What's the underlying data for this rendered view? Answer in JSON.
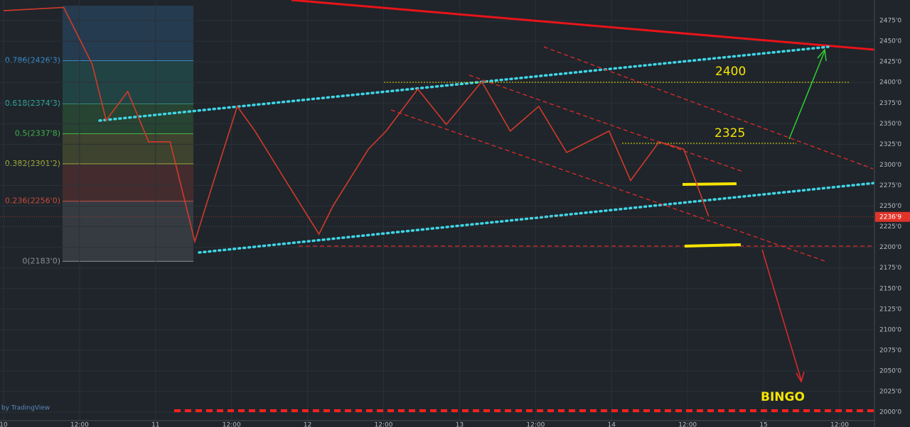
{
  "chart_data": {
    "type": "line",
    "x": [
      0,
      9.5,
      14,
      16.2,
      19.6,
      22.9,
      26.3,
      30.2,
      33,
      36.9,
      39.7,
      44.2,
      49.8,
      52,
      57.6,
      60.4,
      65.4,
      69.9,
      75.5,
      80,
      84.5,
      88.9,
      95.6,
      99,
      103.5,
      107.4,
      111.3
    ],
    "series": [
      {
        "color": "#d23a2a",
        "values": [
          2487,
          2491,
          2422,
          2354,
          2389,
          2328,
          2328,
          2207,
          2276,
          2371,
          2341,
          2285,
          2216,
          2250,
          2319,
          2341,
          2392,
          2349,
          2401,
          2341,
          2371,
          2315,
          2341,
          2281,
          2328,
          2319,
          2238
        ]
      }
    ],
    "xlim": [
      -0.5,
      137
    ],
    "xticks": [
      {
        "value": 0,
        "label": "10"
      },
      {
        "value": 12,
        "label": "12:00"
      },
      {
        "value": 24,
        "label": "11"
      },
      {
        "value": 36,
        "label": "12:00"
      },
      {
        "value": 48,
        "label": "12"
      },
      {
        "value": 60,
        "label": "12:00"
      },
      {
        "value": 72,
        "label": "13"
      },
      {
        "value": 84,
        "label": "12:00"
      },
      {
        "value": 96,
        "label": "14"
      },
      {
        "value": 108,
        "label": "12:00"
      },
      {
        "value": 120,
        "label": "15"
      },
      {
        "value": 132,
        "label": "12:00"
      }
    ],
    "ylim": [
      1982,
      2500
    ],
    "yticks": [
      {
        "value": 2000,
        "label": "2000'0"
      },
      {
        "value": 2025,
        "label": "2025'0"
      },
      {
        "value": 2050,
        "label": "2050'0"
      },
      {
        "value": 2075,
        "label": "2075'0"
      },
      {
        "value": 2100,
        "label": "2100'0"
      },
      {
        "value": 2125,
        "label": "2125'0"
      },
      {
        "value": 2150,
        "label": "2150'0"
      },
      {
        "value": 2175,
        "label": "2175'0"
      },
      {
        "value": 2200,
        "label": "2200'0"
      },
      {
        "value": 2225,
        "label": "2225'0"
      },
      {
        "value": 2250,
        "label": "2250'0"
      },
      {
        "value": 2275,
        "label": "2275'0"
      },
      {
        "value": 2300,
        "label": "2300'0"
      },
      {
        "value": 2325,
        "label": "2325'0"
      },
      {
        "value": 2350,
        "label": "2350'0"
      },
      {
        "value": 2375,
        "label": "2375'0"
      },
      {
        "value": 2400,
        "label": "2400'0"
      },
      {
        "value": 2425,
        "label": "2425'0"
      },
      {
        "value": 2450,
        "label": "2450'0"
      },
      {
        "value": 2475,
        "label": "2475'0"
      }
    ],
    "last_price": {
      "value": 2236.9,
      "label": "2236'9"
    },
    "fib_levels": [
      {
        "value": 2426.3,
        "label": "0.786(2426'3)",
        "color": "#3a8fd0"
      },
      {
        "value": 2374.3,
        "label": "0.618(2374'3)",
        "color": "#2fb3a0"
      },
      {
        "value": 2337.8,
        "label": "0.5(2337'8)",
        "color": "#43b04a"
      },
      {
        "value": 2301.2,
        "label": "0.382(2301'2)",
        "color": "#a8b03a"
      },
      {
        "value": 2256.0,
        "label": "0.236(2256'0)",
        "color": "#c84a3a"
      },
      {
        "value": 2183.0,
        "label": "0(2183'0)",
        "color": "#8a8f96"
      }
    ],
    "annotations": [
      "2400",
      "2325",
      "BINGO"
    ],
    "watermark": "by TradingView"
  }
}
